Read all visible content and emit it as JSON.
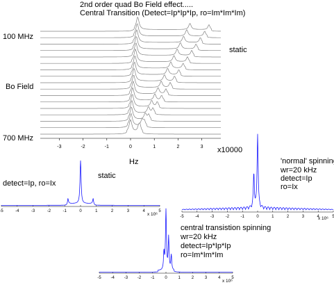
{
  "header": {
    "line1": "2nd order quad Bo Field effect.....",
    "line2": "Central Transition (Detect=Ip*Ip*Ip, ro=Im*Im*Im)"
  },
  "stack_labels": {
    "top": "100 MHz",
    "middle": "Bo Field",
    "bottom": "700 MHz",
    "static": "static",
    "xlabel": "Hz",
    "multiplier": "x10000"
  },
  "panel_static": {
    "label": "static",
    "params": "detect=Ip, ro=Ix",
    "multiplier": "x 10⁶"
  },
  "panel_normal": {
    "line1": "'normal' spinning",
    "line2": "wr=20 kHz",
    "line3": "detect=Ip",
    "line4": "ro=Ix",
    "multiplier": "x 10⁶"
  },
  "panel_ct": {
    "line1": "central transistion spinning",
    "line2": "wr=20 kHz",
    "line3": "detect=Ip*Ip*Ip",
    "line4": "ro=Im*Im*Im",
    "multiplier": "x 10⁶"
  },
  "chart_data": [
    {
      "type": "line",
      "subtype": "stacked",
      "title": "2nd order quad Bo Field effect.....",
      "subtitle": "Central Transition (Detect=Ip*Ip*Ip, ro=Im*Im*Im)",
      "xlabel": "Hz",
      "ylabel": "Bo Field",
      "x_multiplier": "x10000",
      "xlim": [
        -3.8,
        3.8
      ],
      "x_ticks": [
        -3,
        -2,
        -1,
        0,
        1,
        2,
        3
      ],
      "n_traces": 17,
      "field_range_MHz": [
        100,
        700
      ],
      "peak_top_trace": [
        0.3,
        2.5,
        3.3
      ],
      "peak_bottom_trace": [
        0.0,
        0.35
      ],
      "color": "#808080"
    },
    {
      "type": "line",
      "title": "static",
      "xlim": [
        -5,
        5
      ],
      "x_ticks": [
        -5,
        -4,
        -3,
        -2,
        -1,
        0,
        1,
        2,
        3,
        4,
        5
      ],
      "x_multiplier": "x 10⁶",
      "peaks": [
        {
          "x": 0,
          "y": 1.0
        },
        {
          "x": -0.8,
          "y": 0.12
        },
        {
          "x": 0.8,
          "y": 0.12
        }
      ],
      "color": "#1a1aff"
    },
    {
      "type": "line",
      "title": "'normal' spinning",
      "xlim": [
        -5,
        5
      ],
      "x_ticks": [
        -5,
        -4,
        -3,
        -2,
        -1,
        0,
        1,
        2,
        3,
        4,
        5
      ],
      "x_multiplier": "x 10⁶",
      "peaks": [
        {
          "x": 0,
          "y": 1.0
        },
        {
          "x": -0.25,
          "y": 0.45
        }
      ],
      "spinning_sidebands_spacing": 0.2,
      "color": "#1a1aff"
    },
    {
      "type": "line",
      "title": "central transistion spinning",
      "xlim": [
        -5,
        5
      ],
      "x_ticks": [
        -5,
        -4,
        -3,
        -2,
        -1,
        0,
        1,
        2,
        3,
        4,
        5
      ],
      "x_multiplier": "x 10⁶",
      "peaks": [
        {
          "x": 0,
          "y": 1.0
        },
        {
          "x": 0.2,
          "y": 0.55
        },
        {
          "x": -0.15,
          "y": 0.3
        },
        {
          "x": 0.4,
          "y": 0.25
        }
      ],
      "color": "#1a1aff"
    }
  ]
}
